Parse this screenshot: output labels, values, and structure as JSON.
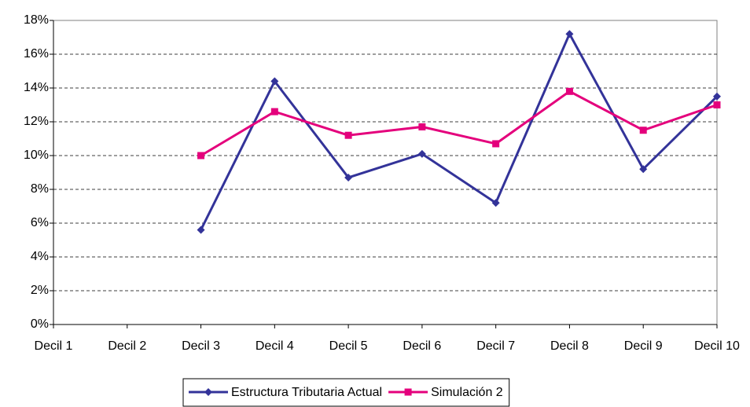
{
  "chart_data": {
    "type": "line",
    "categories": [
      "Decil 1",
      "Decil 2",
      "Decil 3",
      "Decil 4",
      "Decil 5",
      "Decil 6",
      "Decil 7",
      "Decil 8",
      "Decil 9",
      "Decil 10"
    ],
    "series": [
      {
        "name": "Estructura Tributaria Actual",
        "color": "#333399",
        "marker": "diamond",
        "values": [
          null,
          null,
          5.6,
          14.4,
          8.7,
          10.1,
          7.2,
          17.2,
          9.2,
          13.5
        ]
      },
      {
        "name": "Simulación 2",
        "color": "#e4007c",
        "marker": "square",
        "values": [
          null,
          null,
          10.0,
          12.6,
          11.2,
          11.7,
          10.7,
          13.8,
          11.5,
          13.0
        ]
      }
    ],
    "ylim": [
      0,
      18
    ],
    "yticks": [
      {
        "value": 0,
        "label": "0%"
      },
      {
        "value": 2,
        "label": "2%"
      },
      {
        "value": 4,
        "label": "4%"
      },
      {
        "value": 6,
        "label": "6%"
      },
      {
        "value": 8,
        "label": "8%"
      },
      {
        "value": 10,
        "label": "10%"
      },
      {
        "value": 12,
        "label": "12%"
      },
      {
        "value": 14,
        "label": "14%"
      },
      {
        "value": 16,
        "label": "16%"
      },
      {
        "value": 18,
        "label": "18%"
      }
    ],
    "grid": true,
    "legend": "bottom"
  }
}
